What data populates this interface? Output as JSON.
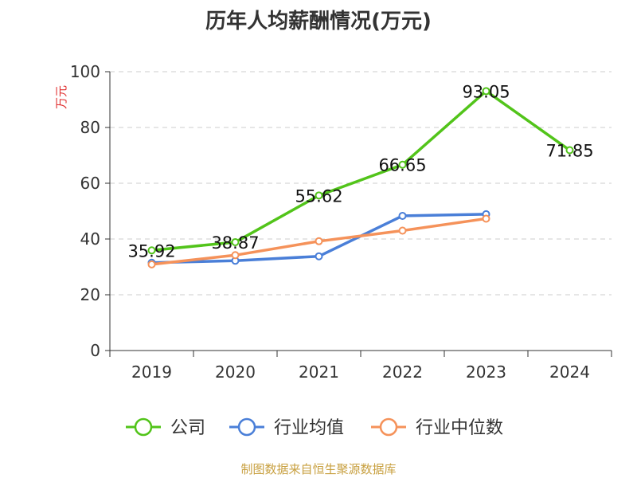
{
  "chart_data": {
    "type": "line",
    "title": "历年人均薪酬情况(万元)",
    "ylabel": "万元",
    "xlabel": "",
    "categories": [
      "2019",
      "2020",
      "2021",
      "2022",
      "2023",
      "2024"
    ],
    "ylim": [
      0,
      100
    ],
    "yticks": [
      0,
      20,
      40,
      60,
      80,
      100
    ],
    "grid": true,
    "legend_position": "bottom",
    "series": [
      {
        "name": "公司",
        "color": "#52c41a",
        "values": [
          35.92,
          38.87,
          55.62,
          66.65,
          93.05,
          71.85
        ],
        "labels": [
          "35.92",
          "38.87",
          "55.62",
          "66.65",
          "93.05",
          "71.85"
        ]
      },
      {
        "name": "行业均值",
        "color": "#4a7fd8",
        "values": [
          31.5,
          32.2,
          33.8,
          48.3,
          48.9,
          null
        ],
        "labels": []
      },
      {
        "name": "行业中位数",
        "color": "#f5925a",
        "values": [
          30.9,
          34.2,
          39.2,
          43.0,
          47.3,
          null
        ],
        "labels": []
      }
    ]
  },
  "footer": "制图数据来自恒生聚源数据库"
}
